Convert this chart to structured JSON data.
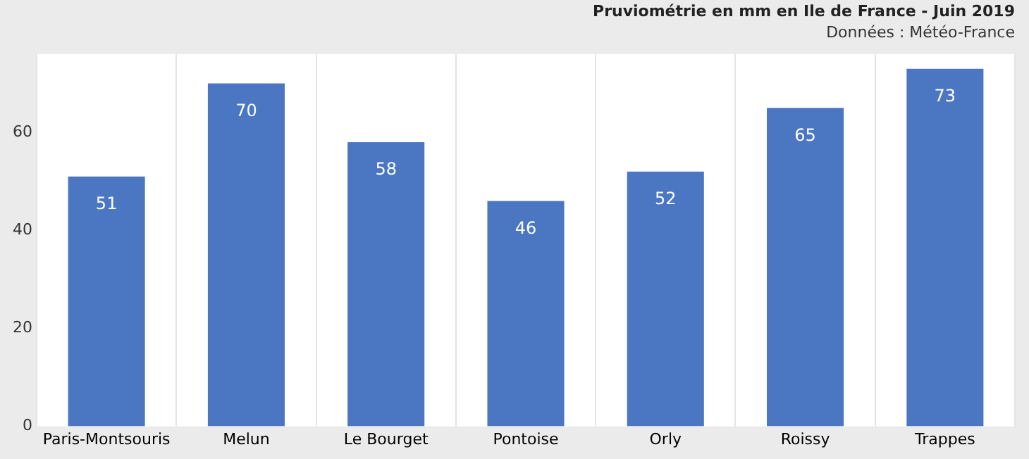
{
  "chart_data": {
    "type": "bar",
    "title": "Pruviométrie en mm en Ile de France - Juin 2019",
    "subtitle": "Données : Météo-France",
    "categories": [
      "Paris-Montsouris",
      "Melun",
      "Le Bourget",
      "Pontoise",
      "Orly",
      "Roissy",
      "Trappes"
    ],
    "values": [
      51,
      70,
      58,
      46,
      52,
      65,
      73
    ],
    "color": "#4a76c2",
    "ylim": [
      0,
      76
    ],
    "yticks": [
      0,
      20,
      40,
      60
    ],
    "grid": "x",
    "data_labels": true
  }
}
